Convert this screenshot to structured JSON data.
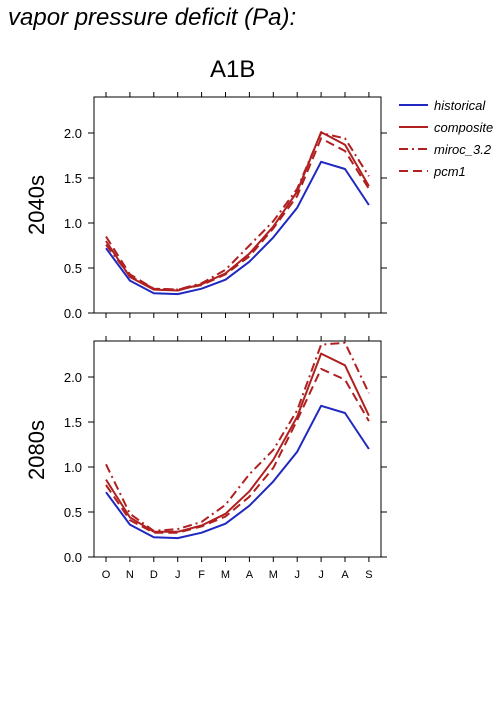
{
  "title": "vapor pressure deficit (Pa):",
  "scenario": "A1B",
  "chart_data": {
    "type": "line",
    "months": [
      "O",
      "N",
      "D",
      "J",
      "F",
      "M",
      "A",
      "M",
      "J",
      "J",
      "A",
      "S"
    ],
    "ylim": [
      0,
      2.4
    ],
    "yticks": [
      "0.0",
      "0.5",
      "1.0",
      "1.5",
      "2.0"
    ],
    "grid": false,
    "legend_position": "right",
    "legend": [
      {
        "name": "historical",
        "color": "#1f28c0",
        "dash": "solid"
      },
      {
        "name": "composite",
        "color": "#b02020",
        "dash": "solid"
      },
      {
        "name": "miroc_3.2",
        "color": "#b02020",
        "dash": "dashdot"
      },
      {
        "name": "pcm1",
        "color": "#b02020",
        "dash": "dash"
      }
    ],
    "panels": [
      {
        "label": "2040s",
        "series": [
          {
            "name": "historical",
            "values": [
              0.72,
              0.36,
              0.22,
              0.21,
              0.27,
              0.37,
              0.57,
              0.84,
              1.17,
              1.68,
              1.6,
              1.2
            ]
          },
          {
            "name": "composite",
            "values": [
              0.8,
              0.4,
              0.26,
              0.25,
              0.32,
              0.44,
              0.66,
              0.96,
              1.35,
              2.01,
              1.87,
              1.41
            ]
          },
          {
            "name": "miroc_3.2",
            "values": [
              0.76,
              0.41,
              0.27,
              0.26,
              0.33,
              0.48,
              0.75,
              1.02,
              1.38,
              2.0,
              1.94,
              1.52
            ]
          },
          {
            "name": "pcm1",
            "values": [
              0.85,
              0.43,
              0.27,
              0.26,
              0.31,
              0.43,
              0.63,
              0.94,
              1.3,
              1.94,
              1.8,
              1.38
            ]
          }
        ]
      },
      {
        "label": "2080s",
        "series": [
          {
            "name": "historical",
            "values": [
              0.72,
              0.36,
              0.22,
              0.21,
              0.27,
              0.37,
              0.57,
              0.84,
              1.17,
              1.68,
              1.6,
              1.2
            ]
          },
          {
            "name": "composite",
            "values": [
              0.86,
              0.44,
              0.28,
              0.28,
              0.35,
              0.48,
              0.73,
              1.08,
              1.56,
              2.26,
              2.13,
              1.57
            ]
          },
          {
            "name": "miroc_3.2",
            "values": [
              1.03,
              0.48,
              0.29,
              0.31,
              0.39,
              0.58,
              0.92,
              1.19,
              1.63,
              2.36,
              2.38,
              1.82
            ]
          },
          {
            "name": "pcm1",
            "values": [
              0.8,
              0.41,
              0.27,
              0.27,
              0.34,
              0.45,
              0.67,
              0.99,
              1.52,
              2.09,
              1.97,
              1.51
            ]
          }
        ]
      }
    ]
  }
}
